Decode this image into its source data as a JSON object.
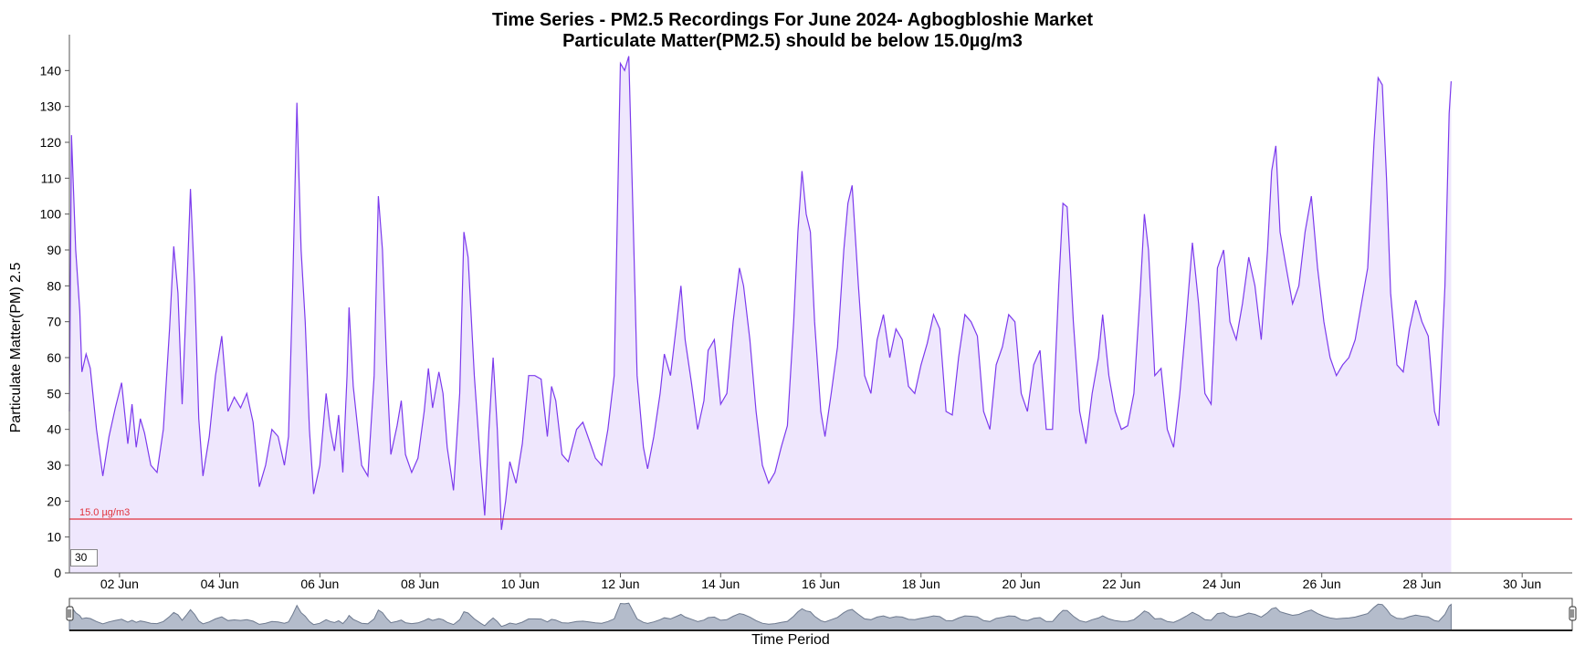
{
  "chart_data": {
    "type": "area",
    "title": "Time Series - PM2.5 Recordings For June 2024- Agbogbloshie Market",
    "subtitle": "Particulate Matter(PM2.5) should be below 15.0µg/m3",
    "xlabel": "Time Period",
    "ylabel": "Particulate Matter(PM) 2.5",
    "xlim": [
      "2024-06-01",
      "2024-06-30T23:59"
    ],
    "ylim": [
      0,
      150
    ],
    "yticks": [
      0,
      10,
      20,
      30,
      40,
      50,
      60,
      70,
      80,
      90,
      100,
      110,
      120,
      130,
      140
    ],
    "xtick_labels": [
      "02 Jun",
      "04 Jun",
      "06 Jun",
      "08 Jun",
      "10 Jun",
      "12 Jun",
      "14 Jun",
      "16 Jun",
      "18 Jun",
      "20 Jun",
      "22 Jun",
      "24 Jun",
      "26 Jun",
      "28 Jun",
      "30 Jun"
    ],
    "reference_line": {
      "value": 15,
      "label": "15.0 µg/m3",
      "color": "#e0323c"
    },
    "series": [
      {
        "color": "#7c3aed",
        "fill": "#efe7fd",
        "points": [
          [
            "2024-06-01 00:00",
            45
          ],
          [
            "2024-06-01 01:00",
            122
          ],
          [
            "2024-06-01 03:00",
            90
          ],
          [
            "2024-06-01 05:00",
            73
          ],
          [
            "2024-06-01 06:00",
            56
          ],
          [
            "2024-06-01 08:00",
            61
          ],
          [
            "2024-06-01 10:00",
            57
          ],
          [
            "2024-06-01 13:00",
            40
          ],
          [
            "2024-06-01 16:00",
            27
          ],
          [
            "2024-06-01 19:00",
            38
          ],
          [
            "2024-06-01 22:00",
            46
          ],
          [
            "2024-06-02 01:00",
            53
          ],
          [
            "2024-06-02 04:00",
            36
          ],
          [
            "2024-06-02 06:00",
            47
          ],
          [
            "2024-06-02 08:00",
            35
          ],
          [
            "2024-06-02 10:00",
            43
          ],
          [
            "2024-06-02 12:00",
            39
          ],
          [
            "2024-06-02 15:00",
            30
          ],
          [
            "2024-06-02 18:00",
            28
          ],
          [
            "2024-06-02 21:00",
            40
          ],
          [
            "2024-06-03 00:00",
            68
          ],
          [
            "2024-06-03 02:00",
            91
          ],
          [
            "2024-06-03 04:00",
            78
          ],
          [
            "2024-06-03 06:00",
            47
          ],
          [
            "2024-06-03 08:00",
            75
          ],
          [
            "2024-06-03 10:00",
            107
          ],
          [
            "2024-06-03 12:00",
            80
          ],
          [
            "2024-06-03 14:00",
            43
          ],
          [
            "2024-06-03 16:00",
            27
          ],
          [
            "2024-06-03 19:00",
            38
          ],
          [
            "2024-06-03 22:00",
            55
          ],
          [
            "2024-06-04 01:00",
            66
          ],
          [
            "2024-06-04 04:00",
            45
          ],
          [
            "2024-06-04 07:00",
            49
          ],
          [
            "2024-06-04 10:00",
            46
          ],
          [
            "2024-06-04 13:00",
            50
          ],
          [
            "2024-06-04 16:00",
            42
          ],
          [
            "2024-06-04 19:00",
            24
          ],
          [
            "2024-06-04 22:00",
            30
          ],
          [
            "2024-06-05 01:00",
            40
          ],
          [
            "2024-06-05 04:00",
            38
          ],
          [
            "2024-06-05 07:00",
            30
          ],
          [
            "2024-06-05 09:00",
            38
          ],
          [
            "2024-06-05 11:00",
            80
          ],
          [
            "2024-06-05 13:00",
            131
          ],
          [
            "2024-06-05 14:00",
            110
          ],
          [
            "2024-06-05 15:00",
            90
          ],
          [
            "2024-06-05 17:00",
            70
          ],
          [
            "2024-06-05 19:00",
            40
          ],
          [
            "2024-06-05 21:00",
            22
          ],
          [
            "2024-06-06 00:00",
            30
          ],
          [
            "2024-06-06 03:00",
            50
          ],
          [
            "2024-06-06 05:00",
            40
          ],
          [
            "2024-06-06 07:00",
            34
          ],
          [
            "2024-06-06 09:00",
            44
          ],
          [
            "2024-06-06 11:00",
            28
          ],
          [
            "2024-06-06 13:00",
            55
          ],
          [
            "2024-06-06 14:00",
            74
          ],
          [
            "2024-06-06 16:00",
            52
          ],
          [
            "2024-06-06 18:00",
            41
          ],
          [
            "2024-06-06 20:00",
            30
          ],
          [
            "2024-06-06 23:00",
            27
          ],
          [
            "2024-06-07 02:00",
            55
          ],
          [
            "2024-06-07 04:00",
            105
          ],
          [
            "2024-06-07 06:00",
            90
          ],
          [
            "2024-06-07 08:00",
            58
          ],
          [
            "2024-06-07 10:00",
            33
          ],
          [
            "2024-06-07 13:00",
            41
          ],
          [
            "2024-06-07 15:00",
            48
          ],
          [
            "2024-06-07 17:00",
            33
          ],
          [
            "2024-06-07 20:00",
            28
          ],
          [
            "2024-06-07 23:00",
            32
          ],
          [
            "2024-06-08 02:00",
            45
          ],
          [
            "2024-06-08 04:00",
            57
          ],
          [
            "2024-06-08 06:00",
            46
          ],
          [
            "2024-06-08 09:00",
            56
          ],
          [
            "2024-06-08 11:00",
            50
          ],
          [
            "2024-06-08 13:00",
            35
          ],
          [
            "2024-06-08 16:00",
            23
          ],
          [
            "2024-06-08 19:00",
            50
          ],
          [
            "2024-06-08 21:00",
            95
          ],
          [
            "2024-06-08 23:00",
            88
          ],
          [
            "2024-06-09 02:00",
            55
          ],
          [
            "2024-06-09 05:00",
            30
          ],
          [
            "2024-06-09 07:00",
            16
          ],
          [
            "2024-06-09 09:00",
            40
          ],
          [
            "2024-06-09 11:00",
            60
          ],
          [
            "2024-06-09 13:00",
            40
          ],
          [
            "2024-06-09 15:00",
            12
          ],
          [
            "2024-06-09 17:00",
            20
          ],
          [
            "2024-06-09 19:00",
            31
          ],
          [
            "2024-06-09 22:00",
            25
          ],
          [
            "2024-06-10 01:00",
            36
          ],
          [
            "2024-06-10 04:00",
            55
          ],
          [
            "2024-06-10 07:00",
            55
          ],
          [
            "2024-06-10 10:00",
            54
          ],
          [
            "2024-06-10 13:00",
            38
          ],
          [
            "2024-06-10 15:00",
            52
          ],
          [
            "2024-06-10 17:00",
            48
          ],
          [
            "2024-06-10 20:00",
            33
          ],
          [
            "2024-06-10 23:00",
            31
          ],
          [
            "2024-06-11 03:00",
            40
          ],
          [
            "2024-06-11 06:00",
            42
          ],
          [
            "2024-06-11 09:00",
            37
          ],
          [
            "2024-06-11 12:00",
            32
          ],
          [
            "2024-06-11 15:00",
            30
          ],
          [
            "2024-06-11 18:00",
            40
          ],
          [
            "2024-06-11 21:00",
            55
          ],
          [
            "2024-06-12 00:00",
            142
          ],
          [
            "2024-06-12 02:00",
            140
          ],
          [
            "2024-06-12 04:00",
            144
          ],
          [
            "2024-06-12 06:00",
            100
          ],
          [
            "2024-06-12 08:00",
            55
          ],
          [
            "2024-06-12 11:00",
            35
          ],
          [
            "2024-06-12 13:00",
            29
          ],
          [
            "2024-06-12 16:00",
            38
          ],
          [
            "2024-06-12 19:00",
            50
          ],
          [
            "2024-06-12 21:00",
            61
          ],
          [
            "2024-06-13 00:00",
            55
          ],
          [
            "2024-06-13 03:00",
            70
          ],
          [
            "2024-06-13 05:00",
            80
          ],
          [
            "2024-06-13 07:00",
            65
          ],
          [
            "2024-06-13 10:00",
            53
          ],
          [
            "2024-06-13 13:00",
            40
          ],
          [
            "2024-06-13 16:00",
            48
          ],
          [
            "2024-06-13 18:00",
            62
          ],
          [
            "2024-06-13 21:00",
            65
          ],
          [
            "2024-06-14 00:00",
            47
          ],
          [
            "2024-06-14 03:00",
            50
          ],
          [
            "2024-06-14 06:00",
            70
          ],
          [
            "2024-06-14 09:00",
            85
          ],
          [
            "2024-06-14 11:00",
            80
          ],
          [
            "2024-06-14 14:00",
            65
          ],
          [
            "2024-06-14 17:00",
            45
          ],
          [
            "2024-06-14 20:00",
            30
          ],
          [
            "2024-06-14 23:00",
            25
          ],
          [
            "2024-06-15 02:00",
            28
          ],
          [
            "2024-06-15 05:00",
            35
          ],
          [
            "2024-06-15 08:00",
            41
          ],
          [
            "2024-06-15 11:00",
            70
          ],
          [
            "2024-06-15 13:00",
            95
          ],
          [
            "2024-06-15 15:00",
            112
          ],
          [
            "2024-06-15 17:00",
            100
          ],
          [
            "2024-06-15 19:00",
            95
          ],
          [
            "2024-06-15 21:00",
            70
          ],
          [
            "2024-06-16 00:00",
            45
          ],
          [
            "2024-06-16 02:00",
            38
          ],
          [
            "2024-06-16 05:00",
            50
          ],
          [
            "2024-06-16 08:00",
            63
          ],
          [
            "2024-06-16 11:00",
            90
          ],
          [
            "2024-06-16 13:00",
            103
          ],
          [
            "2024-06-16 15:00",
            108
          ],
          [
            "2024-06-16 18:00",
            80
          ],
          [
            "2024-06-16 21:00",
            55
          ],
          [
            "2024-06-17 00:00",
            50
          ],
          [
            "2024-06-17 03:00",
            65
          ],
          [
            "2024-06-17 06:00",
            72
          ],
          [
            "2024-06-17 09:00",
            60
          ],
          [
            "2024-06-17 12:00",
            68
          ],
          [
            "2024-06-17 15:00",
            65
          ],
          [
            "2024-06-17 18:00",
            52
          ],
          [
            "2024-06-17 21:00",
            50
          ],
          [
            "2024-06-18 00:00",
            58
          ],
          [
            "2024-06-18 03:00",
            64
          ],
          [
            "2024-06-18 06:00",
            72
          ],
          [
            "2024-06-18 09:00",
            68
          ],
          [
            "2024-06-18 12:00",
            45
          ],
          [
            "2024-06-18 15:00",
            44
          ],
          [
            "2024-06-18 18:00",
            60
          ],
          [
            "2024-06-18 21:00",
            72
          ],
          [
            "2024-06-19 00:00",
            70
          ],
          [
            "2024-06-19 03:00",
            66
          ],
          [
            "2024-06-19 06:00",
            45
          ],
          [
            "2024-06-19 09:00",
            40
          ],
          [
            "2024-06-19 12:00",
            58
          ],
          [
            "2024-06-19 15:00",
            63
          ],
          [
            "2024-06-19 18:00",
            72
          ],
          [
            "2024-06-19 21:00",
            70
          ],
          [
            "2024-06-20 00:00",
            50
          ],
          [
            "2024-06-20 03:00",
            45
          ],
          [
            "2024-06-20 06:00",
            58
          ],
          [
            "2024-06-20 09:00",
            62
          ],
          [
            "2024-06-20 12:00",
            40
          ],
          [
            "2024-06-20 15:00",
            40
          ],
          [
            "2024-06-20 18:00",
            80
          ],
          [
            "2024-06-20 20:00",
            103
          ],
          [
            "2024-06-20 22:00",
            102
          ],
          [
            "2024-06-21 01:00",
            70
          ],
          [
            "2024-06-21 04:00",
            45
          ],
          [
            "2024-06-21 07:00",
            36
          ],
          [
            "2024-06-21 10:00",
            50
          ],
          [
            "2024-06-21 13:00",
            60
          ],
          [
            "2024-06-21 15:00",
            72
          ],
          [
            "2024-06-21 18:00",
            55
          ],
          [
            "2024-06-21 21:00",
            45
          ],
          [
            "2024-06-22 00:00",
            40
          ],
          [
            "2024-06-22 03:00",
            41
          ],
          [
            "2024-06-22 06:00",
            50
          ],
          [
            "2024-06-22 09:00",
            78
          ],
          [
            "2024-06-22 11:00",
            100
          ],
          [
            "2024-06-22 13:00",
            90
          ],
          [
            "2024-06-22 16:00",
            55
          ],
          [
            "2024-06-22 19:00",
            57
          ],
          [
            "2024-06-22 22:00",
            40
          ],
          [
            "2024-06-23 01:00",
            35
          ],
          [
            "2024-06-23 04:00",
            50
          ],
          [
            "2024-06-23 07:00",
            70
          ],
          [
            "2024-06-23 10:00",
            92
          ],
          [
            "2024-06-23 13:00",
            75
          ],
          [
            "2024-06-23 16:00",
            50
          ],
          [
            "2024-06-23 19:00",
            47
          ],
          [
            "2024-06-23 22:00",
            85
          ],
          [
            "2024-06-24 01:00",
            90
          ],
          [
            "2024-06-24 04:00",
            70
          ],
          [
            "2024-06-24 07:00",
            65
          ],
          [
            "2024-06-24 10:00",
            75
          ],
          [
            "2024-06-24 13:00",
            88
          ],
          [
            "2024-06-24 16:00",
            80
          ],
          [
            "2024-06-24 19:00",
            65
          ],
          [
            "2024-06-24 22:00",
            90
          ],
          [
            "2024-06-25 00:00",
            112
          ],
          [
            "2024-06-25 02:00",
            119
          ],
          [
            "2024-06-25 04:00",
            95
          ],
          [
            "2024-06-25 07:00",
            85
          ],
          [
            "2024-06-25 10:00",
            75
          ],
          [
            "2024-06-25 13:00",
            80
          ],
          [
            "2024-06-25 16:00",
            95
          ],
          [
            "2024-06-25 19:00",
            105
          ],
          [
            "2024-06-25 22:00",
            85
          ],
          [
            "2024-06-26 01:00",
            70
          ],
          [
            "2024-06-26 04:00",
            60
          ],
          [
            "2024-06-26 07:00",
            55
          ],
          [
            "2024-06-26 10:00",
            58
          ],
          [
            "2024-06-26 13:00",
            60
          ],
          [
            "2024-06-26 16:00",
            65
          ],
          [
            "2024-06-26 19:00",
            75
          ],
          [
            "2024-06-26 22:00",
            85
          ],
          [
            "2024-06-27 01:00",
            120
          ],
          [
            "2024-06-27 03:00",
            138
          ],
          [
            "2024-06-27 05:00",
            136
          ],
          [
            "2024-06-27 07:00",
            110
          ],
          [
            "2024-06-27 09:00",
            78
          ],
          [
            "2024-06-27 12:00",
            58
          ],
          [
            "2024-06-27 15:00",
            56
          ],
          [
            "2024-06-27 18:00",
            68
          ],
          [
            "2024-06-27 21:00",
            76
          ],
          [
            "2024-06-28 00:00",
            70
          ],
          [
            "2024-06-28 03:00",
            66
          ],
          [
            "2024-06-28 06:00",
            45
          ],
          [
            "2024-06-28 08:00",
            41
          ],
          [
            "2024-06-28 11:00",
            80
          ],
          [
            "2024-06-28 13:00",
            128
          ],
          [
            "2024-06-28 14:00",
            137
          ]
        ]
      }
    ]
  },
  "zoom_input": {
    "value": "30"
  }
}
